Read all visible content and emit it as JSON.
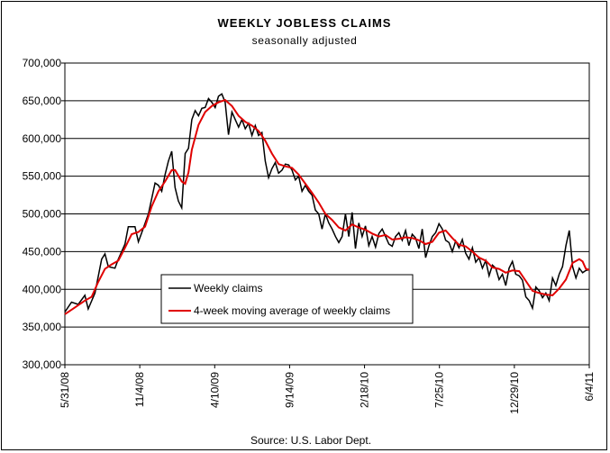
{
  "chart_data": {
    "type": "line",
    "title": "WEEKLY JOBLESS CLAIMS",
    "subtitle": "seasonally adjusted",
    "source": "Source: U.S. Labor Dept.",
    "xlabel": "",
    "ylabel": "",
    "ylim": [
      300000,
      700000
    ],
    "yticks": [
      300000,
      350000,
      400000,
      450000,
      500000,
      550000,
      600000,
      650000,
      700000
    ],
    "ytick_labels": [
      "300,000",
      "350,000",
      "400,000",
      "450,000",
      "500,000",
      "550,000",
      "600,000",
      "650,000",
      "700,000"
    ],
    "xtick_labels": [
      "5/31/08",
      "11/4/08",
      "4/10/09",
      "9/14/09",
      "2/18/10",
      "7/25/10",
      "12/29/10",
      "6/4/11"
    ],
    "grid": "horizontal",
    "legend_position": "lower-left inside plot",
    "weeks_count": 158,
    "series": [
      {
        "name": "Weekly claims",
        "color": "#000000",
        "keypoints": [
          [
            0,
            370000
          ],
          [
            2,
            383000
          ],
          [
            4,
            380000
          ],
          [
            6,
            392000
          ],
          [
            7,
            374000
          ],
          [
            9,
            395000
          ],
          [
            11,
            440000
          ],
          [
            12,
            447000
          ],
          [
            13,
            430000
          ],
          [
            15,
            428000
          ],
          [
            16,
            440000
          ],
          [
            18,
            460000
          ],
          [
            19,
            483000
          ],
          [
            21,
            483000
          ],
          [
            22,
            463000
          ],
          [
            23,
            475000
          ],
          [
            25,
            500000
          ],
          [
            27,
            541000
          ],
          [
            28,
            538000
          ],
          [
            29,
            530000
          ],
          [
            30,
            552000
          ],
          [
            31,
            570000
          ],
          [
            32,
            583000
          ],
          [
            33,
            535000
          ],
          [
            34,
            517000
          ],
          [
            35,
            508000
          ],
          [
            36,
            580000
          ],
          [
            37,
            587000
          ],
          [
            38,
            625000
          ],
          [
            39,
            637000
          ],
          [
            40,
            630000
          ],
          [
            41,
            640000
          ],
          [
            42,
            641000
          ],
          [
            43,
            653000
          ],
          [
            44,
            648000
          ],
          [
            45,
            641000
          ],
          [
            46,
            656000
          ],
          [
            47,
            659000
          ],
          [
            48,
            648000
          ],
          [
            49,
            605000
          ],
          [
            50,
            635000
          ],
          [
            51,
            625000
          ],
          [
            52,
            615000
          ],
          [
            53,
            625000
          ],
          [
            54,
            613000
          ],
          [
            55,
            620000
          ],
          [
            56,
            604000
          ],
          [
            57,
            617000
          ],
          [
            58,
            604000
          ],
          [
            59,
            608000
          ],
          [
            60,
            570000
          ],
          [
            61,
            548000
          ],
          [
            62,
            560000
          ],
          [
            63,
            568000
          ],
          [
            64,
            554000
          ],
          [
            65,
            558000
          ],
          [
            66,
            566000
          ],
          [
            67,
            565000
          ],
          [
            68,
            558000
          ],
          [
            69,
            545000
          ],
          [
            70,
            550000
          ],
          [
            71,
            530000
          ],
          [
            72,
            538000
          ],
          [
            73,
            530000
          ],
          [
            74,
            525000
          ],
          [
            75,
            505000
          ],
          [
            76,
            500000
          ],
          [
            77,
            480000
          ],
          [
            78,
            500000
          ],
          [
            79,
            488000
          ],
          [
            80,
            480000
          ],
          [
            81,
            470000
          ],
          [
            82,
            462000
          ],
          [
            83,
            470000
          ],
          [
            84,
            500000
          ],
          [
            85,
            470000
          ],
          [
            86,
            502000
          ],
          [
            87,
            454000
          ],
          [
            88,
            488000
          ],
          [
            89,
            470000
          ],
          [
            90,
            484000
          ],
          [
            91,
            458000
          ],
          [
            92,
            470000
          ],
          [
            93,
            456000
          ],
          [
            94,
            474000
          ],
          [
            95,
            480000
          ],
          [
            96,
            470000
          ],
          [
            97,
            460000
          ],
          [
            98,
            457000
          ],
          [
            99,
            470000
          ],
          [
            100,
            475000
          ],
          [
            101,
            465000
          ],
          [
            102,
            478000
          ],
          [
            103,
            458000
          ],
          [
            104,
            473000
          ],
          [
            105,
            468000
          ],
          [
            106,
            454000
          ],
          [
            107,
            480000
          ],
          [
            108,
            442000
          ],
          [
            109,
            458000
          ],
          [
            110,
            470000
          ],
          [
            111,
            475000
          ],
          [
            112,
            487000
          ],
          [
            113,
            480000
          ],
          [
            114,
            465000
          ],
          [
            115,
            462000
          ],
          [
            116,
            450000
          ],
          [
            117,
            464000
          ],
          [
            118,
            455000
          ],
          [
            119,
            466000
          ],
          [
            120,
            448000
          ],
          [
            121,
            440000
          ],
          [
            122,
            455000
          ],
          [
            123,
            436000
          ],
          [
            124,
            442000
          ],
          [
            125,
            428000
          ],
          [
            126,
            438000
          ],
          [
            127,
            418000
          ],
          [
            128,
            432000
          ],
          [
            129,
            428000
          ],
          [
            130,
            413000
          ],
          [
            131,
            420000
          ],
          [
            132,
            405000
          ],
          [
            133,
            428000
          ],
          [
            134,
            437000
          ],
          [
            135,
            420000
          ],
          [
            136,
            418000
          ],
          [
            137,
            412000
          ],
          [
            138,
            390000
          ],
          [
            139,
            385000
          ],
          [
            140,
            375000
          ],
          [
            141,
            403000
          ],
          [
            142,
            398000
          ],
          [
            143,
            389000
          ],
          [
            144,
            395000
          ],
          [
            145,
            385000
          ],
          [
            146,
            415000
          ],
          [
            147,
            405000
          ],
          [
            148,
            420000
          ],
          [
            149,
            430000
          ],
          [
            150,
            458000
          ],
          [
            151,
            478000
          ],
          [
            152,
            430000
          ],
          [
            153,
            415000
          ],
          [
            154,
            428000
          ],
          [
            155,
            422000
          ],
          [
            156,
            425000
          ],
          [
            157,
            426000
          ]
        ]
      },
      {
        "name": "4-week moving average of weekly claims",
        "color": "#e00000",
        "keypoints": [
          [
            0,
            367000
          ],
          [
            3,
            376000
          ],
          [
            6,
            385000
          ],
          [
            8,
            390000
          ],
          [
            10,
            410000
          ],
          [
            12,
            427000
          ],
          [
            14,
            433000
          ],
          [
            16,
            438000
          ],
          [
            18,
            455000
          ],
          [
            20,
            473000
          ],
          [
            22,
            476000
          ],
          [
            24,
            483000
          ],
          [
            26,
            510000
          ],
          [
            28,
            530000
          ],
          [
            30,
            543000
          ],
          [
            32,
            558000
          ],
          [
            33,
            558000
          ],
          [
            35,
            543000
          ],
          [
            36,
            540000
          ],
          [
            37,
            555000
          ],
          [
            38,
            585000
          ],
          [
            40,
            618000
          ],
          [
            42,
            635000
          ],
          [
            44,
            643000
          ],
          [
            46,
            648000
          ],
          [
            48,
            651000
          ],
          [
            50,
            643000
          ],
          [
            52,
            630000
          ],
          [
            54,
            622000
          ],
          [
            56,
            617000
          ],
          [
            58,
            610000
          ],
          [
            60,
            597000
          ],
          [
            62,
            580000
          ],
          [
            64,
            566000
          ],
          [
            66,
            563000
          ],
          [
            68,
            561000
          ],
          [
            70,
            552000
          ],
          [
            72,
            540000
          ],
          [
            74,
            528000
          ],
          [
            76,
            515000
          ],
          [
            78,
            500000
          ],
          [
            80,
            492000
          ],
          [
            82,
            482000
          ],
          [
            84,
            478000
          ],
          [
            86,
            486000
          ],
          [
            88,
            482000
          ],
          [
            90,
            479000
          ],
          [
            92,
            474000
          ],
          [
            94,
            470000
          ],
          [
            96,
            472000
          ],
          [
            98,
            466000
          ],
          [
            100,
            467000
          ],
          [
            102,
            469000
          ],
          [
            104,
            468000
          ],
          [
            106,
            465000
          ],
          [
            108,
            460000
          ],
          [
            110,
            463000
          ],
          [
            112,
            475000
          ],
          [
            114,
            478000
          ],
          [
            116,
            468000
          ],
          [
            118,
            459000
          ],
          [
            120,
            457000
          ],
          [
            122,
            450000
          ],
          [
            124,
            442000
          ],
          [
            126,
            438000
          ],
          [
            128,
            429000
          ],
          [
            130,
            427000
          ],
          [
            132,
            422000
          ],
          [
            134,
            425000
          ],
          [
            136,
            424000
          ],
          [
            138,
            411000
          ],
          [
            140,
            398000
          ],
          [
            142,
            395000
          ],
          [
            144,
            393000
          ],
          [
            146,
            392000
          ],
          [
            148,
            401000
          ],
          [
            150,
            413000
          ],
          [
            152,
            435000
          ],
          [
            154,
            440000
          ],
          [
            155,
            437000
          ],
          [
            156,
            427000
          ],
          [
            157,
            426000
          ]
        ]
      }
    ]
  }
}
